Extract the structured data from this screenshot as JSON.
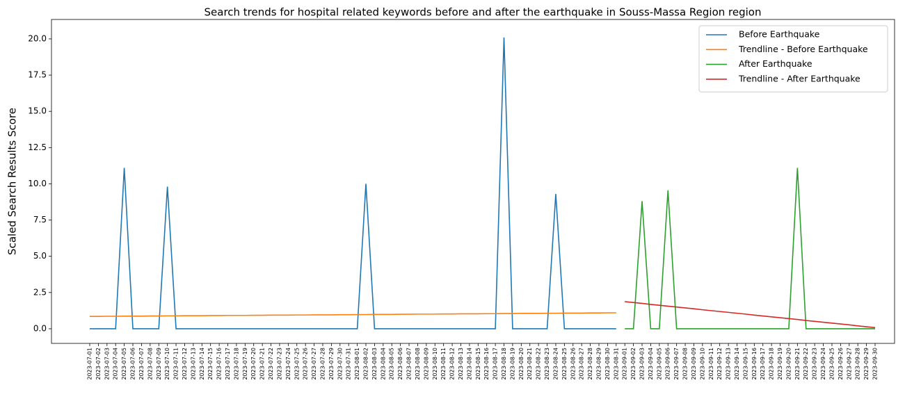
{
  "chart_data": {
    "type": "line",
    "title": "Search trends for hospital related keywords before and after the earthquake in Souss-Massa Region region",
    "y_label": "Scaled Search Results Score",
    "categories": [
      "2023-07-01",
      "2023-07-02",
      "2023-07-03",
      "2023-07-04",
      "2023-07-05",
      "2023-07-06",
      "2023-07-07",
      "2023-07-08",
      "2023-07-09",
      "2023-07-10",
      "2023-07-11",
      "2023-07-12",
      "2023-07-13",
      "2023-07-14",
      "2023-07-15",
      "2023-07-16",
      "2023-07-17",
      "2023-07-18",
      "2023-07-19",
      "2023-07-20",
      "2023-07-21",
      "2023-07-22",
      "2023-07-23",
      "2023-07-24",
      "2023-07-25",
      "2023-07-26",
      "2023-07-27",
      "2023-07-28",
      "2023-07-29",
      "2023-07-30",
      "2023-07-31",
      "2023-08-01",
      "2023-08-02",
      "2023-08-03",
      "2023-08-04",
      "2023-08-05",
      "2023-08-06",
      "2023-08-07",
      "2023-08-08",
      "2023-08-09",
      "2023-08-10",
      "2023-08-11",
      "2023-08-12",
      "2023-08-13",
      "2023-08-14",
      "2023-08-15",
      "2023-08-16",
      "2023-08-17",
      "2023-08-18",
      "2023-08-19",
      "2023-08-20",
      "2023-08-21",
      "2023-08-22",
      "2023-08-23",
      "2023-08-24",
      "2023-08-25",
      "2023-08-26",
      "2023-08-27",
      "2023-08-28",
      "2023-08-29",
      "2023-08-30",
      "2023-08-31",
      "2023-09-01",
      "2023-09-02",
      "2023-09-03",
      "2023-09-04",
      "2023-09-05",
      "2023-09-06",
      "2023-09-07",
      "2023-09-08",
      "2023-09-09",
      "2023-09-10",
      "2023-09-11",
      "2023-09-12",
      "2023-09-13",
      "2023-09-14",
      "2023-09-15",
      "2023-09-16",
      "2023-09-17",
      "2023-09-18",
      "2023-09-19",
      "2023-09-20",
      "2023-09-21",
      "2023-09-22",
      "2023-09-23",
      "2023-09-24",
      "2023-09-25",
      "2023-09-26",
      "2023-09-27",
      "2023-09-28",
      "2023-09-29",
      "2023-09-30"
    ],
    "series": [
      {
        "name": "Before Earthquake",
        "color": "#1f77b4",
        "values": [
          0,
          0,
          0,
          0,
          11.1,
          0,
          0,
          0,
          0,
          9.8,
          0,
          0,
          0,
          0,
          0,
          0,
          0,
          0,
          0,
          0,
          0,
          0,
          0,
          0,
          0,
          0,
          0,
          0,
          0,
          0,
          0,
          0,
          10.0,
          0,
          0,
          0,
          0,
          0,
          0,
          0,
          0,
          0,
          0,
          0,
          0,
          0,
          0,
          0,
          20.1,
          0,
          0,
          0,
          0,
          0,
          9.3,
          0,
          0,
          0,
          0,
          0,
          0,
          0,
          null,
          null,
          null,
          null,
          null,
          null,
          null,
          null,
          null,
          null,
          null,
          null,
          null,
          null,
          null,
          null,
          null,
          null,
          null,
          null,
          null,
          null,
          null,
          null,
          null,
          null,
          null,
          null,
          null,
          null
        ]
      },
      {
        "name": "Trendline - Before Earthquake",
        "color": "#ff7f0e",
        "values": [
          0.85,
          0.85,
          0.86,
          0.86,
          0.87,
          0.87,
          0.87,
          0.88,
          0.88,
          0.89,
          0.89,
          0.9,
          0.9,
          0.9,
          0.91,
          0.91,
          0.92,
          0.92,
          0.92,
          0.93,
          0.93,
          0.94,
          0.94,
          0.94,
          0.95,
          0.95,
          0.96,
          0.96,
          0.96,
          0.97,
          0.97,
          0.98,
          0.98,
          0.99,
          0.99,
          0.99,
          1.0,
          1.0,
          1.01,
          1.01,
          1.01,
          1.02,
          1.02,
          1.03,
          1.03,
          1.03,
          1.04,
          1.04,
          1.05,
          1.05,
          1.06,
          1.06,
          1.06,
          1.07,
          1.07,
          1.08,
          1.08,
          1.08,
          1.09,
          1.09,
          1.1,
          1.1,
          null,
          null,
          null,
          null,
          null,
          null,
          null,
          null,
          null,
          null,
          null,
          null,
          null,
          null,
          null,
          null,
          null,
          null,
          null,
          null,
          null,
          null,
          null,
          null,
          null,
          null,
          null,
          null,
          null,
          null
        ]
      },
      {
        "name": "After Earthquake",
        "color": "#2ca02c",
        "values": [
          null,
          null,
          null,
          null,
          null,
          null,
          null,
          null,
          null,
          null,
          null,
          null,
          null,
          null,
          null,
          null,
          null,
          null,
          null,
          null,
          null,
          null,
          null,
          null,
          null,
          null,
          null,
          null,
          null,
          null,
          null,
          null,
          null,
          null,
          null,
          null,
          null,
          null,
          null,
          null,
          null,
          null,
          null,
          null,
          null,
          null,
          null,
          null,
          null,
          null,
          null,
          null,
          null,
          null,
          null,
          null,
          null,
          null,
          null,
          null,
          null,
          null,
          0,
          0,
          8.8,
          0,
          0,
          9.55,
          0,
          0,
          0,
          0,
          0,
          0,
          0,
          0,
          0,
          0,
          0,
          0,
          0,
          0,
          11.1,
          0,
          0,
          0,
          0,
          0,
          0,
          0,
          0,
          0
        ]
      },
      {
        "name": "Trendline - After Earthquake",
        "color": "#d62728",
        "values": [
          null,
          null,
          null,
          null,
          null,
          null,
          null,
          null,
          null,
          null,
          null,
          null,
          null,
          null,
          null,
          null,
          null,
          null,
          null,
          null,
          null,
          null,
          null,
          null,
          null,
          null,
          null,
          null,
          null,
          null,
          null,
          null,
          null,
          null,
          null,
          null,
          null,
          null,
          null,
          null,
          null,
          null,
          null,
          null,
          null,
          null,
          null,
          null,
          null,
          null,
          null,
          null,
          null,
          null,
          null,
          null,
          null,
          null,
          null,
          null,
          null,
          null,
          1.87,
          1.81,
          1.75,
          1.68,
          1.62,
          1.56,
          1.5,
          1.44,
          1.38,
          1.31,
          1.25,
          1.19,
          1.13,
          1.07,
          1.01,
          0.94,
          0.88,
          0.82,
          0.76,
          0.7,
          0.64,
          0.57,
          0.51,
          0.45,
          0.39,
          0.33,
          0.27,
          0.2,
          0.14,
          0.08
        ]
      }
    ],
    "ylim": [
      -1.01,
      21.34
    ],
    "yticks": [
      {
        "value": 0,
        "label": "0.0"
      },
      2.5,
      {
        "value": 5,
        "label": "5.0"
      },
      7.5,
      {
        "value": 10,
        "label": "10.0"
      },
      12.5,
      {
        "value": 15,
        "label": "15.0"
      },
      17.5,
      {
        "value": 20,
        "label": "20.0"
      }
    ],
    "grid": false,
    "legend": "upper right"
  }
}
